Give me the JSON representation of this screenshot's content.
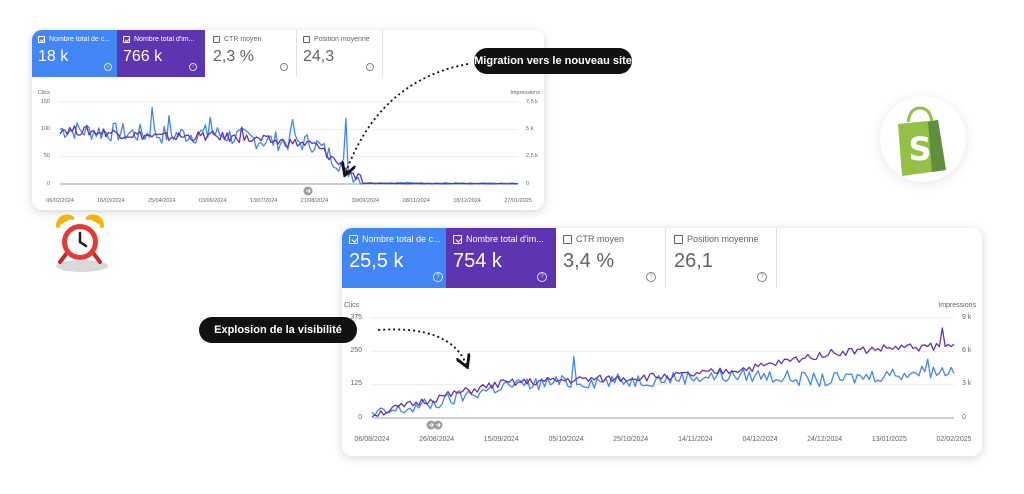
{
  "colors": {
    "clicks": "#4285f4",
    "impressions": "#5e35b1",
    "ctr": "#ffffff",
    "pos": "#ffffff"
  },
  "top_card": {
    "metrics": [
      {
        "label": "Nombre total de c...",
        "value": "18 k",
        "selected": true
      },
      {
        "label": "Nombre total d'im...",
        "value": "766 k",
        "selected": true
      },
      {
        "label": "CTR moyen",
        "value": "2,3 %",
        "selected": false
      },
      {
        "label": "Position moyenne",
        "value": "24,3",
        "selected": false
      }
    ],
    "y_left_title": "Clics",
    "y_right_title": "Impressions",
    "y_left_ticks": [
      "150",
      "100",
      "50",
      "0"
    ],
    "y_right_ticks": [
      "7,5 k",
      "5 k",
      "2,5 k",
      "0"
    ],
    "x_ticks": [
      "06/02/2024",
      "16/03/2024",
      "25/04/2024",
      "03/06/2024",
      "13/07/2024",
      "21/08/2024",
      "30/09/2024",
      "08/11/2024",
      "18/12/2024",
      "27/01/2025"
    ]
  },
  "bottom_card": {
    "metrics": [
      {
        "label": "Nombre total de c...",
        "value": "25,5 k",
        "selected": true
      },
      {
        "label": "Nombre total d'im...",
        "value": "754 k",
        "selected": true
      },
      {
        "label": "CTR moyen",
        "value": "3,4 %",
        "selected": false
      },
      {
        "label": "Position moyenne",
        "value": "26,1",
        "selected": false
      }
    ],
    "y_left_title": "Clics",
    "y_right_title": "Impressions",
    "y_left_ticks": [
      "375",
      "250",
      "125",
      "0"
    ],
    "y_right_ticks": [
      "9 k",
      "6 k",
      "3 k",
      "0"
    ],
    "x_ticks": [
      "06/08/2024",
      "26/08/2024",
      "15/09/2024",
      "05/10/2024",
      "25/10/2024",
      "14/11/2024",
      "04/12/2024",
      "24/12/2024",
      "13/01/2025",
      "02/02/2025"
    ]
  },
  "annotations": {
    "migration": "Migration vers le nouveau site",
    "explosion": "Explosion de la visibilité"
  },
  "chart_data": [
    {
      "type": "line",
      "x": [
        "06/02/2024",
        "16/03/2024",
        "25/04/2024",
        "03/06/2024",
        "13/07/2024",
        "21/08/2024",
        "30/09/2024",
        "08/11/2024",
        "18/12/2024",
        "27/01/2025"
      ],
      "series": [
        {
          "name": "Nombre total de c...",
          "axis": "left",
          "values": [
            100,
            95,
            90,
            92,
            80,
            75,
            2,
            2,
            1,
            1
          ]
        },
        {
          "name": "Nombre total d'im...",
          "axis": "right",
          "values": [
            5000,
            4700,
            4300,
            4400,
            4000,
            3600,
            50,
            40,
            30,
            20
          ]
        }
      ],
      "ylim_left": [
        0,
        150
      ],
      "ylim_right": [
        0,
        7500
      ],
      "grid": true
    },
    {
      "type": "line",
      "x": [
        "06/08/2024",
        "26/08/2024",
        "15/09/2024",
        "05/10/2024",
        "25/10/2024",
        "14/11/2024",
        "04/12/2024",
        "24/12/2024",
        "13/01/2025",
        "02/02/2025"
      ],
      "series": [
        {
          "name": "Nombre total de c...",
          "axis": "left",
          "values": [
            10,
            55,
            120,
            135,
            140,
            155,
            160,
            140,
            165,
            180
          ]
        },
        {
          "name": "Nombre total d'im...",
          "axis": "right",
          "values": [
            300,
            1800,
            3100,
            3400,
            3600,
            3900,
            4600,
            5800,
            6300,
            6500
          ]
        }
      ],
      "ylim_left": [
        0,
        375
      ],
      "ylim_right": [
        0,
        9000
      ],
      "grid": true
    }
  ]
}
